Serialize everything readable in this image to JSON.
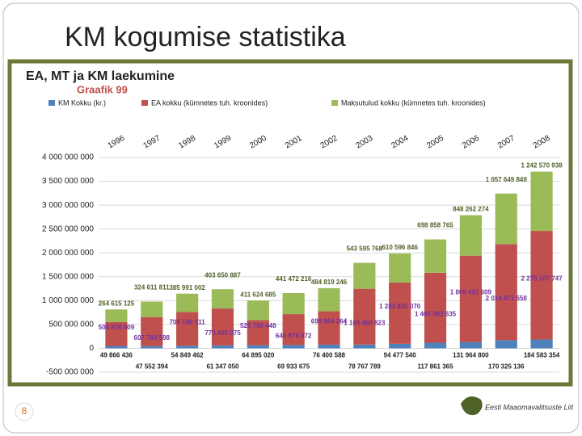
{
  "slide_title": "KM kogumise statistika",
  "page_number": "8",
  "logo_text": "Eesti Maaomavalitsuste Liit",
  "chart_data": {
    "type": "stacked-bar",
    "title": "EA, MT ja KM laekumine",
    "subtitle": "Graafik 99",
    "categories": [
      "1996",
      "1997",
      "1998",
      "1999",
      "2000",
      "2001",
      "2002",
      "2003",
      "2004",
      "2005",
      "2006",
      "2007",
      "2008"
    ],
    "series": [
      {
        "name": "KM Kokku (kr.)",
        "color": "#4f81bd",
        "label_color": "#1f1f1f",
        "values": [
          49866436,
          47552394,
          54849462,
          61347050,
          64895020,
          69933675,
          76400588,
          78767789,
          94477540,
          117861365,
          131964800,
          170325136,
          184583354
        ],
        "value_labels": [
          "49 866 436",
          "47 552 394",
          "54 849 462",
          "61 347 050",
          "64 895 020",
          "69 933 675",
          "76 400 588",
          "78 767 789",
          "94 477 540",
          "117 861 365",
          "131 964 800",
          "170 325 136",
          "184 583 354"
        ]
      },
      {
        "name": "EA kokku (kümnetes tuh. kroonides)",
        "color": "#c0504d",
        "label_color": "#7030a0",
        "values": [
          500876609,
          607760598,
          705186511,
          773405075,
          525760448,
          646979872,
          699984264,
          1169460823,
          1283835070,
          1465983635,
          1809431609,
          2014871558,
          2275107747
        ],
        "value_labels": [
          "500 876 609",
          "607 760 598",
          "705 186 511",
          "773 405 075",
          "525 760 448",
          "646 979 872",
          "699 984 264",
          "1 169 460 823",
          "1 283 835 070",
          "1 465 983 635",
          "1 809 431 609",
          "2 014 871 558",
          "2 275 107 747"
        ]
      },
      {
        "name": "Maksutulud kokku (kümnetes tuh. kroonides)",
        "color": "#9bbb59",
        "label_color": "#4f6228",
        "values": [
          264615125,
          324611811,
          385991002,
          403650887,
          411624685,
          441472216,
          484819246,
          543595768,
          610596846,
          698858765,
          848262274,
          1057649849,
          1242570938
        ],
        "value_labels": [
          "264 615 125",
          "324 611 811",
          "385 991 002",
          "403 650 887",
          "411 624 685",
          "441 472 216",
          "484 819 246",
          "543 595 768",
          "610 596 846",
          "698 858 765",
          "848 262 274",
          "1 057 649 849",
          "1 242 570 938"
        ]
      }
    ],
    "ylim": [
      -500000000,
      4000000000
    ],
    "yticks": [
      {
        "value": -500000000,
        "label": "-500 000 000"
      },
      0,
      {
        "value": 500000000,
        "label": "500 000 000"
      },
      {
        "value": 1000000000,
        "label": "1 000 000 000"
      },
      {
        "value": 1500000000,
        "label": "1 500 000 000"
      },
      {
        "value": 2000000000,
        "label": "2 000 000 000"
      },
      {
        "value": 2500000000,
        "label": "2 500 000 000"
      },
      {
        "value": 3000000000,
        "label": "3 000 000 000"
      },
      {
        "value": 3500000000,
        "label": "3 500 000 000"
      },
      {
        "value": 4000000000,
        "label": "4 000 000 000"
      }
    ],
    "grid": true
  }
}
